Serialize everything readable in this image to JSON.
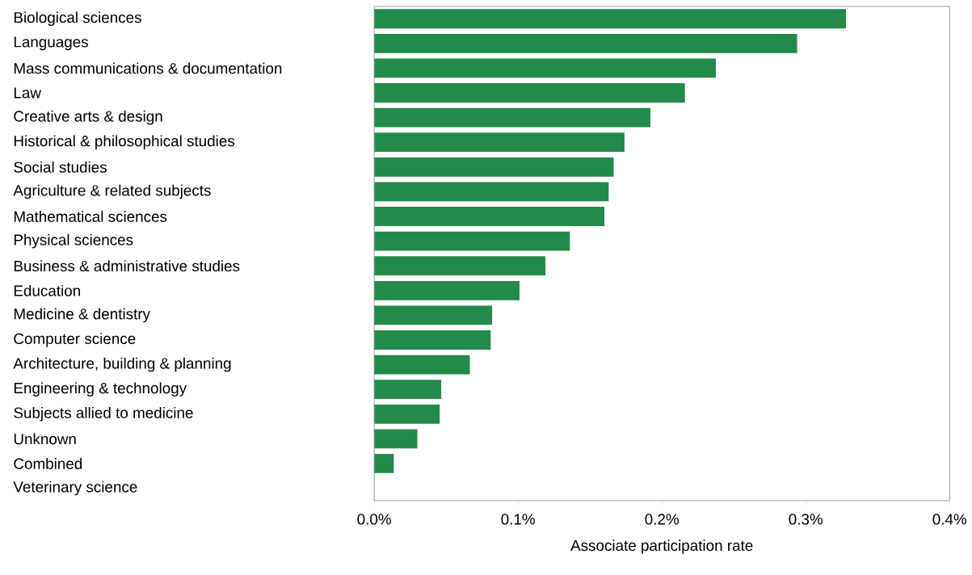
{
  "chart_data": {
    "type": "bar",
    "orientation": "horizontal",
    "xlabel": "Associate participation rate",
    "categories": [
      "Biological sciences",
      "Languages",
      "Mass communications & documentation",
      "Law",
      "Creative arts & design",
      "Historical & philosophical studies",
      "Social studies",
      "Agriculture & related subjects",
      "Mathematical sciences",
      "Physical sciences",
      "Business & administrative studies",
      "Education",
      "Medicine & dentistry",
      "Computer science",
      "Architecture, building & planning",
      "Engineering & technology",
      "Subjects allied to medicine",
      "Unknown",
      "Combined",
      "Veterinary science"
    ],
    "values": [
      0.328,
      0.294,
      0.2375,
      0.216,
      0.192,
      0.174,
      0.1665,
      0.163,
      0.16,
      0.136,
      0.119,
      0.101,
      0.082,
      0.081,
      0.0665,
      0.0466,
      0.0455,
      0.03,
      0.0136,
      0
    ],
    "color": "#238b4a",
    "xlim": [
      0,
      0.4
    ],
    "xticks": [
      {
        "value": 0,
        "label": "0.0%"
      },
      {
        "value": 0.1,
        "label": "0.1%"
      },
      {
        "value": 0.2,
        "label": "0.2%"
      },
      {
        "value": 0.3,
        "label": "0.3%"
      },
      {
        "value": 0.4,
        "label": "0.4%"
      }
    ],
    "grid": false
  }
}
